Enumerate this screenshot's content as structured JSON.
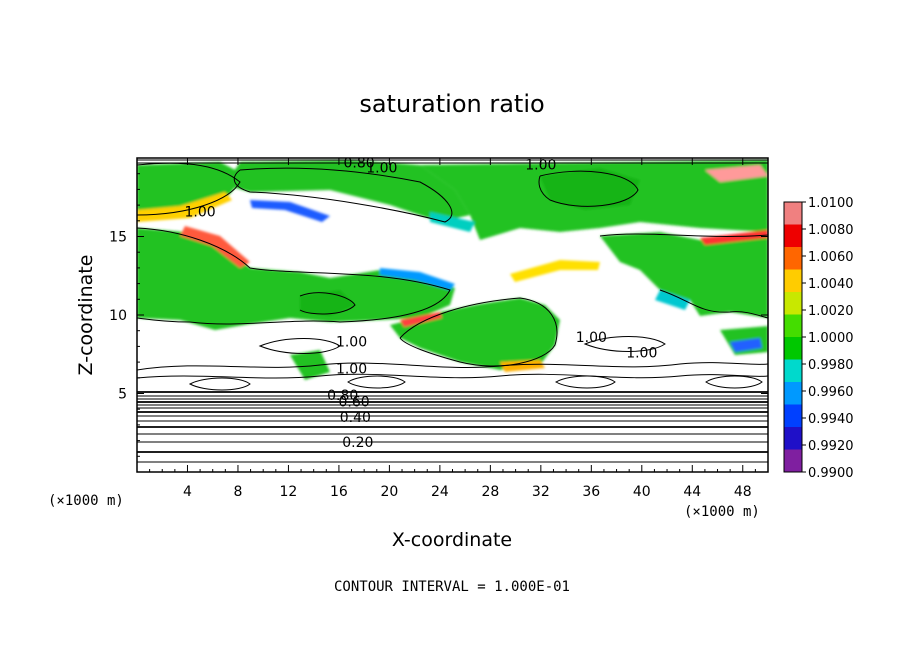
{
  "chart_data": {
    "type": "heatmap",
    "title": "saturation ratio",
    "xlabel": "X-coordinate",
    "ylabel": "Z-coordinate",
    "x_unit_left": "(×1000 m)",
    "x_unit_right": "(×1000 m)",
    "xlim": [
      0,
      50
    ],
    "ylim": [
      0,
      20
    ],
    "x_ticks": [
      4,
      8,
      12,
      16,
      20,
      24,
      28,
      32,
      36,
      40,
      44,
      48
    ],
    "y_ticks": [
      5,
      10,
      15
    ],
    "x_tick_labels": [
      "4",
      "8",
      "12",
      "16",
      "20",
      "24",
      "28",
      "32",
      "36",
      "40",
      "44",
      "48"
    ],
    "y_tick_labels": [
      "5",
      "10",
      "15"
    ],
    "note": "CONTOUR INTERVAL = 1.000E-01",
    "contour_labels": [
      {
        "text": "0.80",
        "x": 17.6,
        "z": 19.7
      },
      {
        "text": "1.00",
        "x": 19.4,
        "z": 19.4
      },
      {
        "text": "1.00",
        "x": 32.0,
        "z": 19.6
      },
      {
        "text": "1.00",
        "x": 5.0,
        "z": 16.6
      },
      {
        "text": "1.00",
        "x": 17.0,
        "z": 8.3
      },
      {
        "text": "1.00",
        "x": 36.0,
        "z": 8.6
      },
      {
        "text": "1.00",
        "x": 40.0,
        "z": 7.6
      },
      {
        "text": "1.00",
        "x": 17.0,
        "z": 6.6
      },
      {
        "text": "0.80",
        "x": 16.3,
        "z": 4.9
      },
      {
        "text": "0.60",
        "x": 17.2,
        "z": 4.5
      },
      {
        "text": "0.40",
        "x": 17.3,
        "z": 3.5
      },
      {
        "text": "0.20",
        "x": 17.5,
        "z": 1.9
      }
    ],
    "contour_levels_below": [
      0.1,
      0.2,
      0.3,
      0.4,
      0.5,
      0.6,
      0.7,
      0.8,
      0.9
    ],
    "colorbar": {
      "min": 0.99,
      "max": 1.01,
      "labels": [
        "1.0100",
        "1.0080",
        "1.0060",
        "1.0040",
        "1.0020",
        "1.0000",
        "0.9980",
        "0.9960",
        "0.9940",
        "0.9920",
        "0.9900"
      ],
      "colors": [
        "#7f1fa0",
        "#1f10c8",
        "#0040ff",
        "#0099ff",
        "#00d9cc",
        "#00c800",
        "#44dd00",
        "#c8e800",
        "#ffcc00",
        "#ff6600",
        "#ee0000",
        "#f08080"
      ]
    },
    "colors": {
      "subsaturated": "#ffffff",
      "near_one": "#22c222",
      "background_green": "#2fd02f"
    }
  }
}
